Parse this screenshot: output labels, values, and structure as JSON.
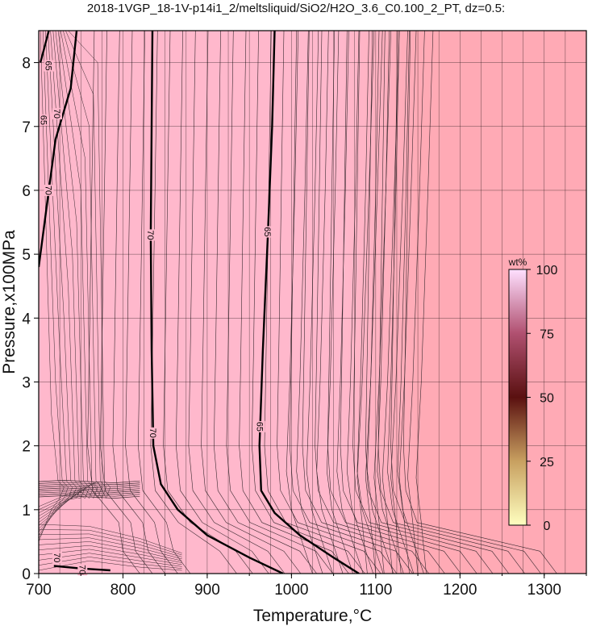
{
  "chart_data": {
    "type": "heatmap",
    "title": "2018-1VGP_18-1V-p14i1_2/meltsliquid/SiO2/H2O_3.6_C0.100_2_PT, dz=0.5:",
    "xlabel": "Temperature,°C",
    "ylabel": "Pressure,x100MPa",
    "xlim": [
      700,
      1350
    ],
    "ylim": [
      0,
      8.5
    ],
    "x_ticks": [
      700,
      800,
      900,
      1000,
      1100,
      1200,
      1300
    ],
    "y_ticks": [
      0,
      1,
      2,
      3,
      4,
      5,
      6,
      7,
      8
    ],
    "grid": true,
    "colorbar": {
      "label": "wt%",
      "range": [
        0,
        100
      ],
      "ticks": [
        0,
        25,
        50,
        75,
        100
      ],
      "colors": [
        "#ffffc0",
        "#c8a060",
        "#5a1010",
        "#b05070",
        "#ffe0ff"
      ]
    },
    "fill_colors": {
      "low_temp_region": "#ffb8cc",
      "high_temp_region": "#ffaab5"
    },
    "bold_contours": [
      {
        "label": "70",
        "points": [
          [
            835,
            8.5
          ],
          [
            834,
            7
          ],
          [
            833,
            5.3
          ],
          [
            834,
            3.5
          ],
          [
            836,
            2.0
          ],
          [
            845,
            1.4
          ],
          [
            865,
            1.0
          ],
          [
            900,
            0.6
          ],
          [
            950,
            0.25
          ],
          [
            990,
            0.0
          ]
        ]
      },
      {
        "label": "65",
        "points": [
          [
            980,
            8.5
          ],
          [
            977,
            7
          ],
          [
            972,
            5.3
          ],
          [
            966,
            3.5
          ],
          [
            962,
            2.0
          ],
          [
            964,
            1.3
          ],
          [
            980,
            0.95
          ],
          [
            1010,
            0.6
          ],
          [
            1050,
            0.25
          ],
          [
            1080,
            0.0
          ]
        ]
      },
      {
        "label": "65",
        "points": [
          [
            712,
            8.5
          ],
          [
            706,
            8.2
          ],
          [
            702,
            8.0
          ]
        ]
      },
      {
        "label": "70",
        "points": [
          [
            745,
            8.5
          ],
          [
            738,
            7.6
          ],
          [
            720,
            6.8
          ],
          [
            712,
            6.0
          ],
          [
            706,
            5.4
          ],
          [
            700,
            4.8
          ]
        ]
      },
      {
        "label": "70",
        "points": [
          [
            718,
            0.12
          ],
          [
            750,
            0.08
          ],
          [
            785,
            0.05
          ]
        ]
      }
    ],
    "contour_labels": [
      {
        "text": "65",
        "x": 712,
        "y": 7.95
      },
      {
        "text": "70",
        "x": 722,
        "y": 7.2
      },
      {
        "text": "65",
        "x": 706,
        "y": 7.1
      },
      {
        "text": "70",
        "x": 712,
        "y": 6.0
      },
      {
        "text": "70",
        "x": 833,
        "y": 5.3
      },
      {
        "text": "65",
        "x": 972,
        "y": 5.35
      },
      {
        "text": "70",
        "x": 836,
        "y": 2.2
      },
      {
        "text": "65",
        "x": 963,
        "y": 2.3
      },
      {
        "text": "70",
        "x": 722,
        "y": 0.25
      },
      {
        "text": "70",
        "x": 752,
        "y": 0.06
      }
    ]
  }
}
